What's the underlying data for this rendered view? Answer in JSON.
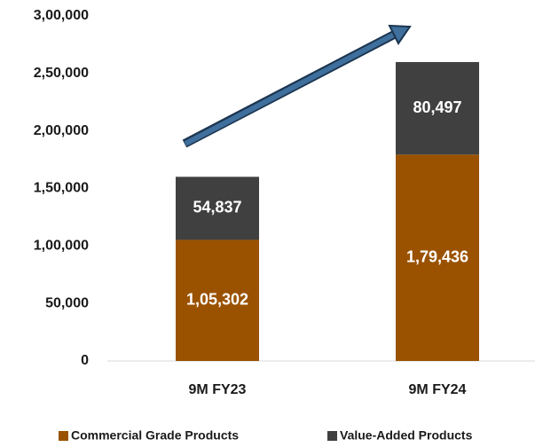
{
  "chart_data": {
    "type": "stacked_bar",
    "categories": [
      "9M FY23",
      "9M FY24"
    ],
    "series": [
      {
        "name": "Commercial Grade Products",
        "color": "#9a5200",
        "values": [
          105302,
          179436
        ],
        "value_labels": [
          "1,05,302",
          "1,79,436"
        ]
      },
      {
        "name": "Value-Added Products",
        "color": "#404040",
        "values": [
          54837,
          80497
        ],
        "value_labels": [
          "54,837",
          "80,497"
        ]
      }
    ],
    "ylim": [
      0,
      300000
    ],
    "yticks": [
      0,
      {
        "value": 50000,
        "label": "50,000"
      },
      {
        "value": 100000,
        "label": "1,00,000"
      },
      {
        "value": 150000,
        "label": "1,50,000"
      },
      {
        "value": 200000,
        "label": "2,00,000"
      },
      {
        "value": 250000,
        "label": "2,50,000"
      },
      {
        "value": 300000,
        "label": "3,00,000"
      }
    ],
    "legend": "bottom"
  }
}
